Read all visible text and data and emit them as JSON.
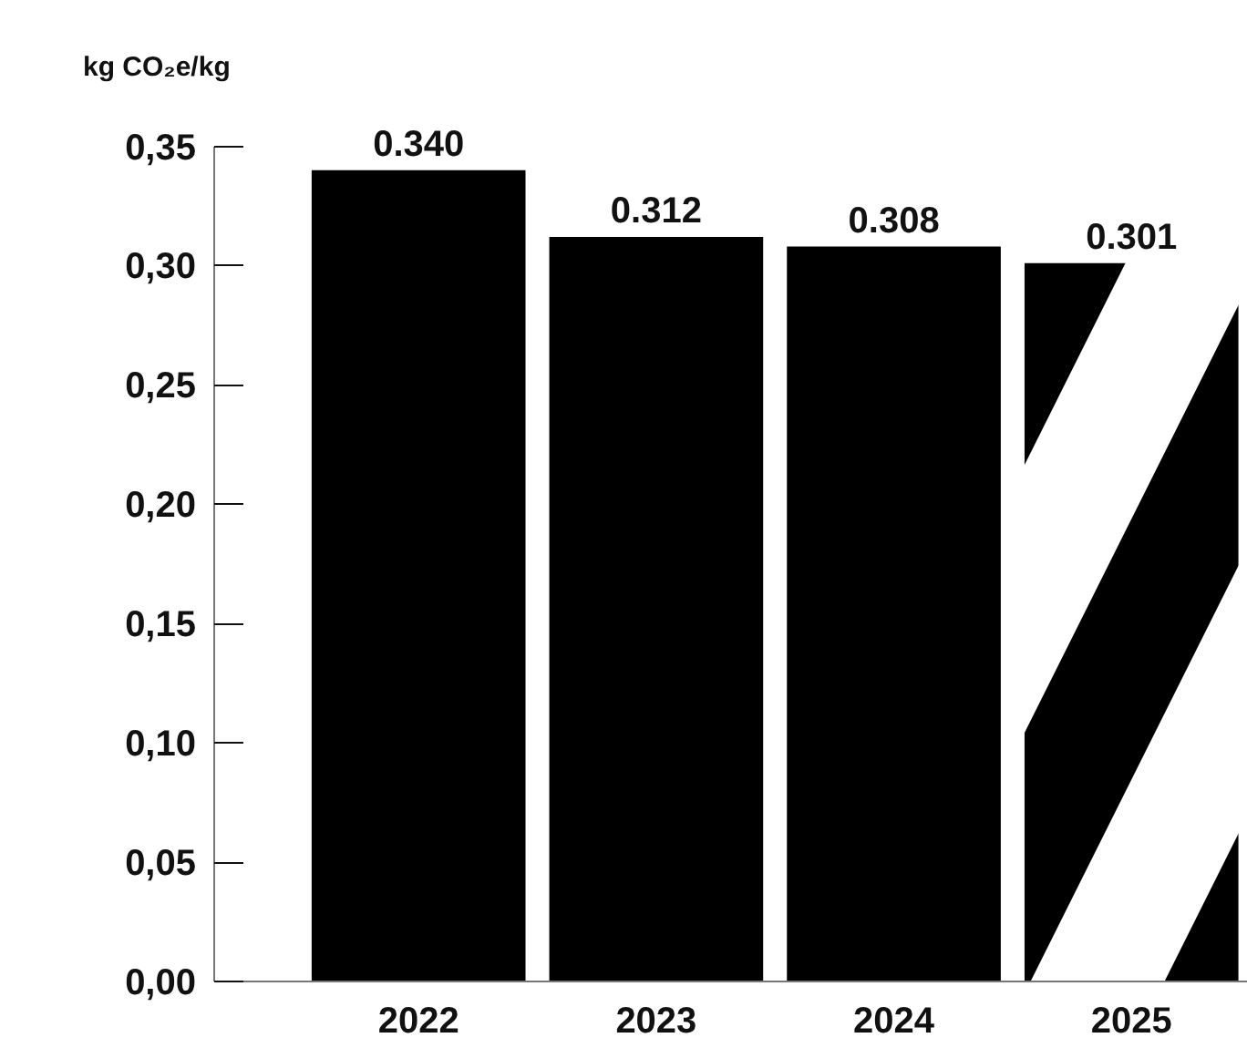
{
  "chart_data": {
    "type": "bar",
    "ylabel": "kg CO₂e/kg",
    "categories": [
      "2022",
      "2023",
      "2024",
      "2025"
    ],
    "series": [
      {
        "color": "#000000",
        "values": [
          0.34,
          0.312,
          0.308,
          null
        ],
        "value_labels": [
          "0.340",
          "0.312",
          "0.308",
          null
        ]
      },
      {
        "color": "#000000",
        "values": [
          null,
          null,
          null,
          0.301
        ],
        "value_labels": [
          null,
          null,
          null,
          "0.301"
        ]
      }
    ],
    "ylim": [
      0,
      0.35
    ],
    "yticks": [
      {
        "value": 0,
        "label": "0,00"
      },
      {
        "value": 0.05,
        "label": "0,05"
      },
      {
        "value": 0.1,
        "label": "0,10"
      },
      {
        "value": 0.15,
        "label": "0,15"
      },
      {
        "value": 0.2,
        "label": "0,20"
      },
      {
        "value": 0.25,
        "label": "0,25"
      },
      {
        "value": 0.3,
        "label": "0,30"
      },
      {
        "value": 0.35,
        "label": "0,35"
      }
    ],
    "grid": false
  }
}
